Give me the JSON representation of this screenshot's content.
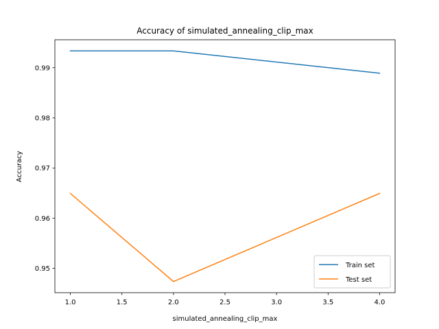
{
  "chart_data": {
    "type": "line",
    "title": "Accuracy of simulated_annealing_clip_max",
    "xlabel": "simulated_annealing_clip_max",
    "ylabel": "Accuracy",
    "x": [
      1.0,
      2.0,
      4.0
    ],
    "series": [
      {
        "name": "Train set",
        "values": [
          0.99335,
          0.99335,
          0.9889
        ],
        "color": "#1f77b4"
      },
      {
        "name": "Test set",
        "values": [
          0.96494,
          0.94737,
          0.96494
        ],
        "color": "#ff7f0e"
      }
    ],
    "xlim": [
      0.85,
      4.15
    ],
    "ylim": [
      0.94515,
      0.99557
    ],
    "xticks": [
      1.0,
      1.5,
      2.0,
      2.5,
      3.0,
      3.5,
      4.0
    ],
    "xtick_labels": [
      "1.0",
      "1.5",
      "2.0",
      "2.5",
      "3.0",
      "3.5",
      "4.0"
    ],
    "yticks": [
      0.95,
      0.96,
      0.97,
      0.98,
      0.99
    ],
    "ytick_labels": [
      "0.95",
      "0.96",
      "0.97",
      "0.98",
      "0.99"
    ],
    "grid": false,
    "legend_position": "lower-right"
  }
}
